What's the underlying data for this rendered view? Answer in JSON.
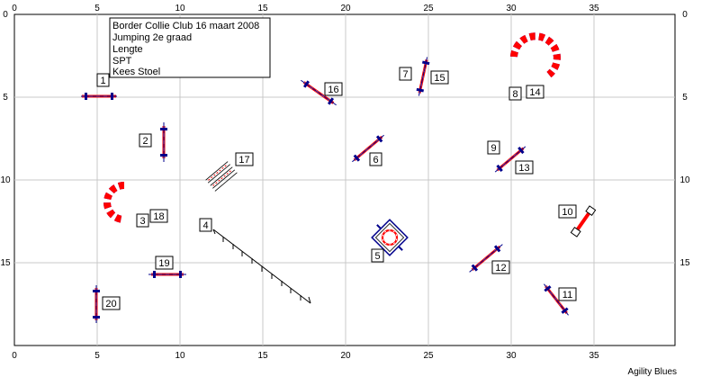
{
  "info": {
    "lines": [
      "Border Collie Club 16 maart 2008",
      "Jumping 2e graad",
      "Lengte",
      "SPT",
      "Kees Stoel"
    ]
  },
  "grid": {
    "x_ticks": [
      "0",
      "5",
      "10",
      "15",
      "20",
      "25",
      "30",
      "35"
    ],
    "y_ticks": [
      "0",
      "5",
      "10",
      "15"
    ]
  },
  "numbers": [
    {
      "id": "n1",
      "text": "1"
    },
    {
      "id": "n2",
      "text": "2"
    },
    {
      "id": "n3",
      "text": "3"
    },
    {
      "id": "n18",
      "text": "18"
    },
    {
      "id": "n4",
      "text": "4"
    },
    {
      "id": "n5",
      "text": "5"
    },
    {
      "id": "n6",
      "text": "6"
    },
    {
      "id": "n7",
      "text": "7"
    },
    {
      "id": "n15",
      "text": "15"
    },
    {
      "id": "n8",
      "text": "8"
    },
    {
      "id": "n14",
      "text": "14"
    },
    {
      "id": "n9",
      "text": "9"
    },
    {
      "id": "n13",
      "text": "13"
    },
    {
      "id": "n10",
      "text": "10"
    },
    {
      "id": "n11",
      "text": "11"
    },
    {
      "id": "n12",
      "text": "12"
    },
    {
      "id": "n16",
      "text": "16"
    },
    {
      "id": "n17",
      "text": "17"
    },
    {
      "id": "n19",
      "text": "19"
    },
    {
      "id": "n20",
      "text": "20"
    }
  ],
  "colors": {
    "bar_red": "#ff0000",
    "bar_blue": "#00008b",
    "tunnel_red": "#ff0000",
    "tunnel_blue": "#0000ff",
    "grid": "#c8c8c8"
  },
  "footer": "Agility Blues"
}
